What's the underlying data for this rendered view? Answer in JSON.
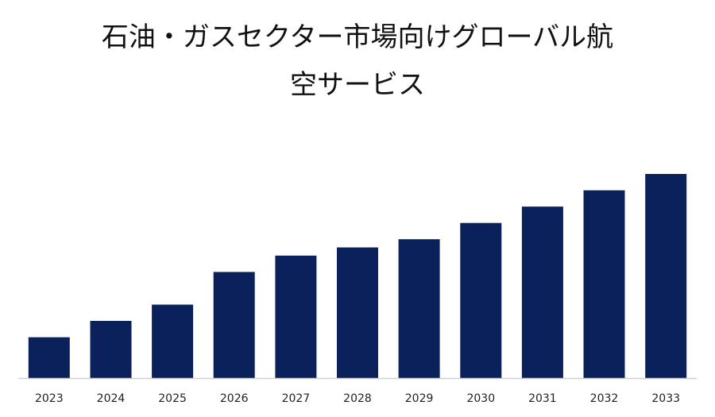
{
  "chart_data": {
    "type": "bar",
    "title_lines": [
      "石油・ガスセクター市場向けグローバル航",
      "空サービス"
    ],
    "categories": [
      "2023",
      "2024",
      "2025",
      "2026",
      "2027",
      "2028",
      "2029",
      "2030",
      "2031",
      "2032",
      "2033"
    ],
    "values": [
      1.0,
      1.4,
      1.8,
      2.6,
      3.0,
      3.2,
      3.4,
      3.8,
      4.2,
      4.6,
      5.0
    ],
    "xlabel": "",
    "ylabel": "",
    "ylim": [
      0,
      5.0
    ],
    "grid": false,
    "legend": "none",
    "bar_color": "#0b215c",
    "axis_color": "#cfcfcf"
  }
}
